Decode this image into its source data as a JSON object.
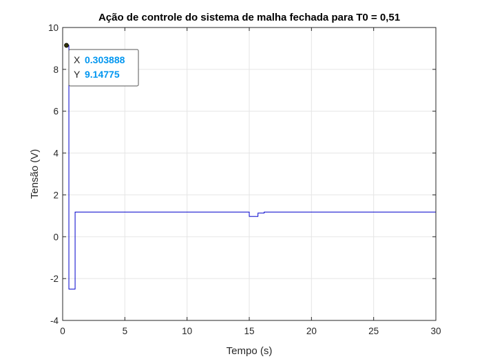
{
  "chart_data": {
    "type": "line",
    "title": "Ação de controle do sistema de malha fechada para T0 = 0,51",
    "xlabel": "Tempo (s)",
    "ylabel": "Tensão (V)",
    "xlim": [
      0,
      30
    ],
    "ylim": [
      -4,
      10
    ],
    "xticks": [
      0,
      5,
      10,
      15,
      20,
      25,
      30
    ],
    "yticks": [
      -4,
      -2,
      0,
      2,
      4,
      6,
      8,
      10
    ],
    "xtick_labels": [
      "0",
      "5",
      "10",
      "15",
      "20",
      "25",
      "30"
    ],
    "ytick_labels": [
      "-4",
      "-2",
      "0",
      "2",
      "4",
      "6",
      "8",
      "10"
    ],
    "grid": true,
    "series": [
      {
        "color": "#0000cc",
        "step": true,
        "x": [
          0.3039,
          0.5,
          1.0,
          15.0,
          15.7,
          16.2,
          30
        ],
        "y": [
          9.14775,
          -2.5,
          1.18,
          0.97,
          1.13,
          1.18,
          1.18
        ]
      }
    ],
    "datatip": {
      "x_label": "X",
      "y_label": "Y",
      "x_value": "0.303888",
      "y_value": "9.14775",
      "x": 0.303888,
      "y": 9.14775
    },
    "colors": {
      "line": "#0000cc",
      "grid": "#e5e5e5",
      "axis": "#262626",
      "datatip_value": "#0096f0"
    }
  }
}
